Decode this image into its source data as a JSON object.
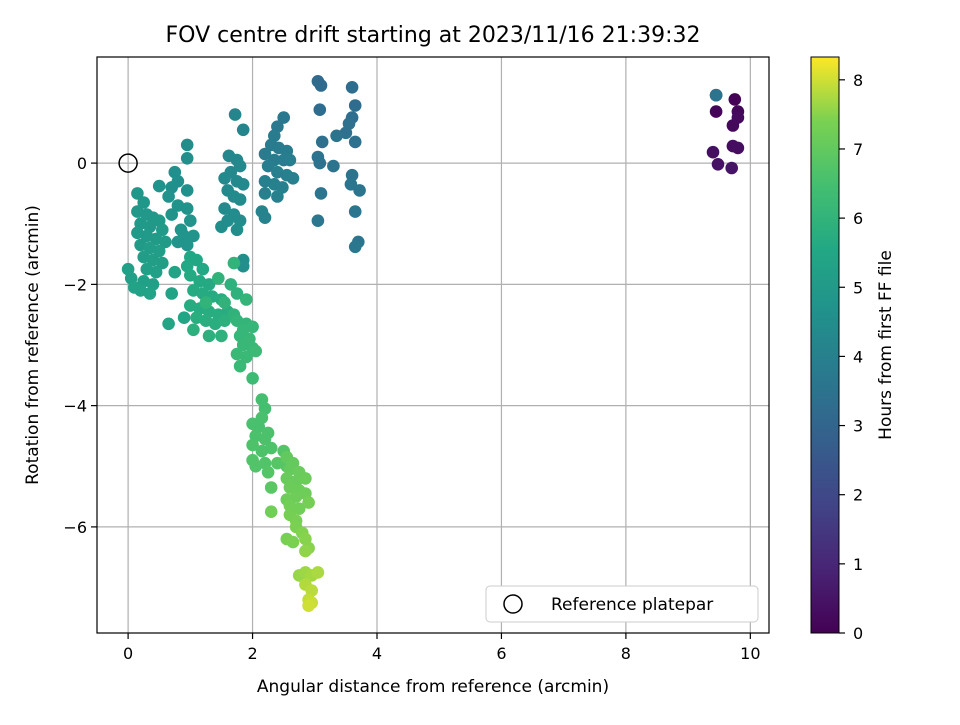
{
  "chart_data": {
    "type": "scatter",
    "title": "FOV centre drift starting at 2023/11/16 21:39:32",
    "xlabel": "Angular distance from reference (arcmin)",
    "ylabel": "Rotation from reference (arcmin)",
    "xlim": [
      -0.5,
      10.3
    ],
    "ylim": [
      -7.75,
      1.75
    ],
    "xticks": [
      0,
      2,
      4,
      6,
      8,
      10
    ],
    "yticks": [
      0,
      -2,
      -4,
      -6
    ],
    "x_tick_labels": [
      "0",
      "2",
      "4",
      "6",
      "8",
      "10"
    ],
    "y_tick_labels": [
      "0",
      "−2",
      "−4",
      "−6"
    ],
    "grid": true,
    "legend_position": "lower-right",
    "colorbar": {
      "label": "Hours from first FF file",
      "range": [
        0,
        8.33
      ],
      "ticks": [
        0,
        1,
        2,
        3,
        4,
        5,
        6,
        7,
        8
      ],
      "tick_labels": [
        "0",
        "1",
        "2",
        "3",
        "4",
        "5",
        "6",
        "7",
        "8"
      ],
      "colormap": "viridis"
    },
    "reference": {
      "name": "Reference platepar",
      "x": 0,
      "y": 0
    },
    "series": [
      {
        "points": [
          [
            9.45,
            1.12,
            0.0
          ],
          [
            9.75,
            1.05,
            0.05
          ],
          [
            9.45,
            0.85,
            0.1
          ],
          [
            9.8,
            0.85,
            0.15
          ],
          [
            9.72,
            0.62,
            0.2
          ],
          [
            9.8,
            0.75,
            0.25
          ],
          [
            9.72,
            0.28,
            0.3
          ],
          [
            9.8,
            0.25,
            0.35
          ],
          [
            9.4,
            0.18,
            0.4
          ],
          [
            9.48,
            -0.02,
            0.45
          ],
          [
            9.7,
            -0.08,
            0.5
          ],
          [
            9.45,
            1.12,
            3.5
          ],
          [
            3.05,
            1.35,
            3.2
          ],
          [
            3.1,
            1.28,
            3.2
          ],
          [
            3.6,
            1.25,
            3.3
          ],
          [
            3.65,
            0.95,
            3.3
          ],
          [
            3.08,
            0.88,
            3.3
          ],
          [
            3.6,
            0.75,
            3.35
          ],
          [
            3.55,
            0.65,
            3.4
          ],
          [
            3.5,
            0.5,
            3.4
          ],
          [
            3.65,
            0.35,
            3.45
          ],
          [
            3.12,
            0.35,
            3.4
          ],
          [
            3.35,
            0.45,
            3.5
          ],
          [
            3.05,
            0.1,
            3.5
          ],
          [
            3.08,
            0.0,
            3.5
          ],
          [
            3.3,
            -0.05,
            3.55
          ],
          [
            3.6,
            -0.2,
            3.55
          ],
          [
            3.72,
            -0.45,
            3.6
          ],
          [
            3.1,
            -0.5,
            3.6
          ],
          [
            3.58,
            -0.35,
            3.6
          ],
          [
            3.65,
            -0.8,
            3.6
          ],
          [
            3.05,
            -0.95,
            3.65
          ],
          [
            3.7,
            -1.3,
            3.6
          ],
          [
            3.65,
            -1.38,
            3.65
          ],
          [
            2.5,
            0.75,
            3.7
          ],
          [
            2.4,
            0.6,
            3.75
          ],
          [
            2.35,
            0.45,
            3.8
          ],
          [
            2.3,
            0.3,
            3.8
          ],
          [
            2.42,
            0.25,
            3.8
          ],
          [
            2.55,
            0.2,
            3.85
          ],
          [
            2.2,
            0.15,
            3.85
          ],
          [
            2.35,
            0.05,
            3.85
          ],
          [
            2.5,
            0.05,
            3.9
          ],
          [
            2.6,
            0.05,
            3.9
          ],
          [
            2.25,
            -0.05,
            3.9
          ],
          [
            2.4,
            -0.15,
            3.95
          ],
          [
            2.55,
            -0.2,
            3.95
          ],
          [
            2.65,
            -0.25,
            3.95
          ],
          [
            2.2,
            -0.3,
            4.0
          ],
          [
            2.35,
            -0.35,
            4.0
          ],
          [
            2.48,
            -0.4,
            4.0
          ],
          [
            2.2,
            -0.5,
            4.05
          ],
          [
            2.4,
            -0.55,
            4.05
          ],
          [
            2.15,
            -0.8,
            4.1
          ],
          [
            2.2,
            -0.9,
            4.1
          ],
          [
            1.72,
            0.8,
            4.2
          ],
          [
            1.85,
            0.55,
            4.2
          ],
          [
            1.62,
            0.12,
            4.25
          ],
          [
            1.75,
            0.05,
            4.25
          ],
          [
            1.8,
            -0.05,
            4.3
          ],
          [
            1.65,
            -0.15,
            4.3
          ],
          [
            1.55,
            -0.25,
            4.3
          ],
          [
            1.75,
            -0.3,
            4.35
          ],
          [
            1.85,
            -0.35,
            4.35
          ],
          [
            1.6,
            -0.45,
            4.35
          ],
          [
            1.7,
            -0.55,
            4.4
          ],
          [
            1.8,
            -0.6,
            4.4
          ],
          [
            1.55,
            -0.75,
            4.4
          ],
          [
            1.7,
            -0.85,
            4.45
          ],
          [
            1.8,
            -0.95,
            4.45
          ],
          [
            1.6,
            -0.95,
            4.45
          ],
          [
            1.5,
            -1.05,
            4.5
          ],
          [
            1.75,
            -1.1,
            4.5
          ],
          [
            1.85,
            -1.6,
            4.5
          ],
          [
            1.85,
            -1.7,
            4.55
          ],
          [
            0.95,
            0.3,
            4.5
          ],
          [
            0.95,
            0.08,
            4.55
          ],
          [
            0.75,
            -0.15,
            4.55
          ],
          [
            0.8,
            -0.3,
            4.6
          ],
          [
            0.7,
            -0.4,
            4.6
          ],
          [
            0.95,
            -0.45,
            4.6
          ],
          [
            0.5,
            -0.38,
            4.65
          ],
          [
            0.65,
            -0.55,
            4.65
          ],
          [
            0.8,
            -0.7,
            4.7
          ],
          [
            0.95,
            -0.75,
            4.7
          ],
          [
            0.7,
            -0.85,
            4.7
          ],
          [
            1.0,
            -0.95,
            4.75
          ],
          [
            0.85,
            -1.1,
            4.75
          ],
          [
            0.9,
            -1.2,
            4.75
          ],
          [
            1.05,
            -1.2,
            4.8
          ],
          [
            0.8,
            -1.3,
            4.8
          ],
          [
            0.95,
            -1.35,
            4.8
          ],
          [
            0.15,
            -0.5,
            4.85
          ],
          [
            0.25,
            -0.65,
            4.85
          ],
          [
            0.15,
            -0.8,
            4.9
          ],
          [
            0.3,
            -0.85,
            4.9
          ],
          [
            0.4,
            -0.9,
            4.9
          ],
          [
            0.5,
            -0.95,
            4.95
          ],
          [
            0.2,
            -1.0,
            4.95
          ],
          [
            0.35,
            -1.05,
            4.95
          ],
          [
            0.55,
            -1.1,
            5.0
          ],
          [
            0.15,
            -1.15,
            5.0
          ],
          [
            0.3,
            -1.2,
            5.0
          ],
          [
            0.45,
            -1.25,
            5.05
          ],
          [
            0.6,
            -1.3,
            5.05
          ],
          [
            0.2,
            -1.35,
            5.05
          ],
          [
            0.35,
            -1.4,
            5.1
          ],
          [
            0.5,
            -1.45,
            5.1
          ],
          [
            0.25,
            -1.55,
            5.1
          ],
          [
            0.4,
            -1.6,
            5.15
          ],
          [
            0.55,
            -1.65,
            5.15
          ],
          [
            0.3,
            -1.75,
            5.2
          ],
          [
            0.45,
            -1.8,
            5.2
          ],
          [
            0.0,
            -1.75,
            5.2
          ],
          [
            0.05,
            -1.9,
            5.25
          ],
          [
            0.25,
            -1.95,
            5.25
          ],
          [
            0.4,
            -2.0,
            5.25
          ],
          [
            0.2,
            -2.1,
            5.3
          ],
          [
            0.35,
            -2.15,
            5.3
          ],
          [
            0.1,
            -2.05,
            5.3
          ],
          [
            0.75,
            -1.8,
            5.35
          ],
          [
            0.7,
            -2.15,
            5.35
          ],
          [
            0.65,
            -2.65,
            5.4
          ],
          [
            0.9,
            -2.55,
            5.45
          ],
          [
            1.0,
            -1.55,
            5.5
          ],
          [
            1.1,
            -1.6,
            5.5
          ],
          [
            0.95,
            -1.7,
            5.55
          ],
          [
            1.2,
            -1.75,
            5.55
          ],
          [
            1.0,
            -1.85,
            5.6
          ],
          [
            1.15,
            -1.95,
            5.6
          ],
          [
            1.3,
            -2.0,
            5.6
          ],
          [
            1.05,
            -2.1,
            5.65
          ],
          [
            1.2,
            -2.15,
            5.65
          ],
          [
            1.35,
            -2.2,
            5.65
          ],
          [
            1.5,
            -2.25,
            5.7
          ],
          [
            1.0,
            -2.35,
            5.7
          ],
          [
            1.15,
            -2.4,
            5.7
          ],
          [
            1.3,
            -2.45,
            5.75
          ],
          [
            1.45,
            -2.5,
            5.75
          ],
          [
            1.6,
            -2.45,
            5.75
          ],
          [
            1.1,
            -2.55,
            5.8
          ],
          [
            1.25,
            -2.6,
            5.8
          ],
          [
            1.4,
            -2.65,
            5.8
          ],
          [
            1.55,
            -2.6,
            5.85
          ],
          [
            1.05,
            -2.75,
            5.85
          ],
          [
            1.3,
            -2.85,
            5.85
          ],
          [
            1.5,
            -2.85,
            5.9
          ],
          [
            1.65,
            -2.0,
            5.9
          ],
          [
            1.75,
            -2.15,
            5.9
          ],
          [
            1.55,
            -2.3,
            5.95
          ],
          [
            1.7,
            -2.5,
            5.95
          ],
          [
            1.45,
            -1.9,
            5.95
          ],
          [
            1.7,
            -1.65,
            6.0
          ],
          [
            1.25,
            -2.3,
            6.0
          ],
          [
            1.9,
            -2.25,
            6.05
          ],
          [
            1.75,
            -2.6,
            6.05
          ],
          [
            1.9,
            -2.65,
            6.05
          ],
          [
            1.85,
            -2.75,
            6.1
          ],
          [
            2.0,
            -2.7,
            6.1
          ],
          [
            1.8,
            -2.85,
            6.1
          ],
          [
            1.95,
            -2.9,
            6.15
          ],
          [
            1.85,
            -3.0,
            6.15
          ],
          [
            2.0,
            -3.05,
            6.15
          ],
          [
            1.75,
            -3.15,
            6.2
          ],
          [
            1.9,
            -3.2,
            6.2
          ],
          [
            1.8,
            -3.35,
            6.2
          ],
          [
            2.05,
            -3.1,
            6.25
          ],
          [
            2.0,
            -3.55,
            6.3
          ],
          [
            2.15,
            -3.9,
            6.5
          ],
          [
            2.2,
            -4.05,
            6.5
          ],
          [
            2.15,
            -4.2,
            6.55
          ],
          [
            2.0,
            -4.3,
            6.55
          ],
          [
            2.1,
            -4.35,
            6.55
          ],
          [
            2.25,
            -4.45,
            6.6
          ],
          [
            2.05,
            -4.5,
            6.6
          ],
          [
            2.2,
            -4.55,
            6.6
          ],
          [
            2.0,
            -4.65,
            6.65
          ],
          [
            2.15,
            -4.75,
            6.65
          ],
          [
            2.3,
            -4.7,
            6.65
          ],
          [
            2.0,
            -4.9,
            6.7
          ],
          [
            2.2,
            -4.95,
            6.7
          ],
          [
            2.05,
            -5.0,
            6.7
          ],
          [
            2.25,
            -5.1,
            6.75
          ],
          [
            2.5,
            -4.75,
            6.75
          ],
          [
            2.4,
            -4.95,
            6.8
          ],
          [
            2.55,
            -5.0,
            6.8
          ],
          [
            2.3,
            -5.35,
            6.85
          ],
          [
            2.55,
            -4.85,
            7.0
          ],
          [
            2.65,
            -4.95,
            7.05
          ],
          [
            2.6,
            -5.05,
            7.05
          ],
          [
            2.75,
            -5.1,
            7.1
          ],
          [
            2.55,
            -5.2,
            7.1
          ],
          [
            2.7,
            -5.25,
            7.1
          ],
          [
            2.85,
            -5.2,
            7.15
          ],
          [
            2.6,
            -5.35,
            7.15
          ],
          [
            2.75,
            -5.4,
            7.15
          ],
          [
            2.55,
            -5.55,
            7.2
          ],
          [
            2.7,
            -5.5,
            7.2
          ],
          [
            2.85,
            -5.45,
            7.2
          ],
          [
            2.3,
            -5.75,
            7.25
          ],
          [
            2.6,
            -5.65,
            7.25
          ],
          [
            2.75,
            -5.7,
            7.25
          ],
          [
            2.9,
            -5.6,
            7.3
          ],
          [
            2.6,
            -5.8,
            7.3
          ],
          [
            2.7,
            -5.9,
            7.35
          ],
          [
            2.55,
            -6.2,
            7.35
          ],
          [
            2.65,
            -6.25,
            7.4
          ],
          [
            2.7,
            -6.0,
            7.4
          ],
          [
            2.8,
            -6.1,
            7.45
          ],
          [
            2.85,
            -6.2,
            7.5
          ],
          [
            2.9,
            -6.35,
            7.5
          ],
          [
            2.85,
            -6.4,
            7.55
          ],
          [
            2.75,
            -6.8,
            7.6
          ],
          [
            2.85,
            -6.75,
            7.65
          ],
          [
            2.95,
            -6.8,
            7.7
          ],
          [
            3.05,
            -6.75,
            7.75
          ],
          [
            2.85,
            -6.95,
            7.8
          ],
          [
            2.95,
            -7.05,
            7.85
          ],
          [
            2.9,
            -7.2,
            7.9
          ],
          [
            2.95,
            -7.25,
            7.95
          ],
          [
            2.9,
            -7.3,
            8.0
          ]
        ]
      }
    ]
  }
}
